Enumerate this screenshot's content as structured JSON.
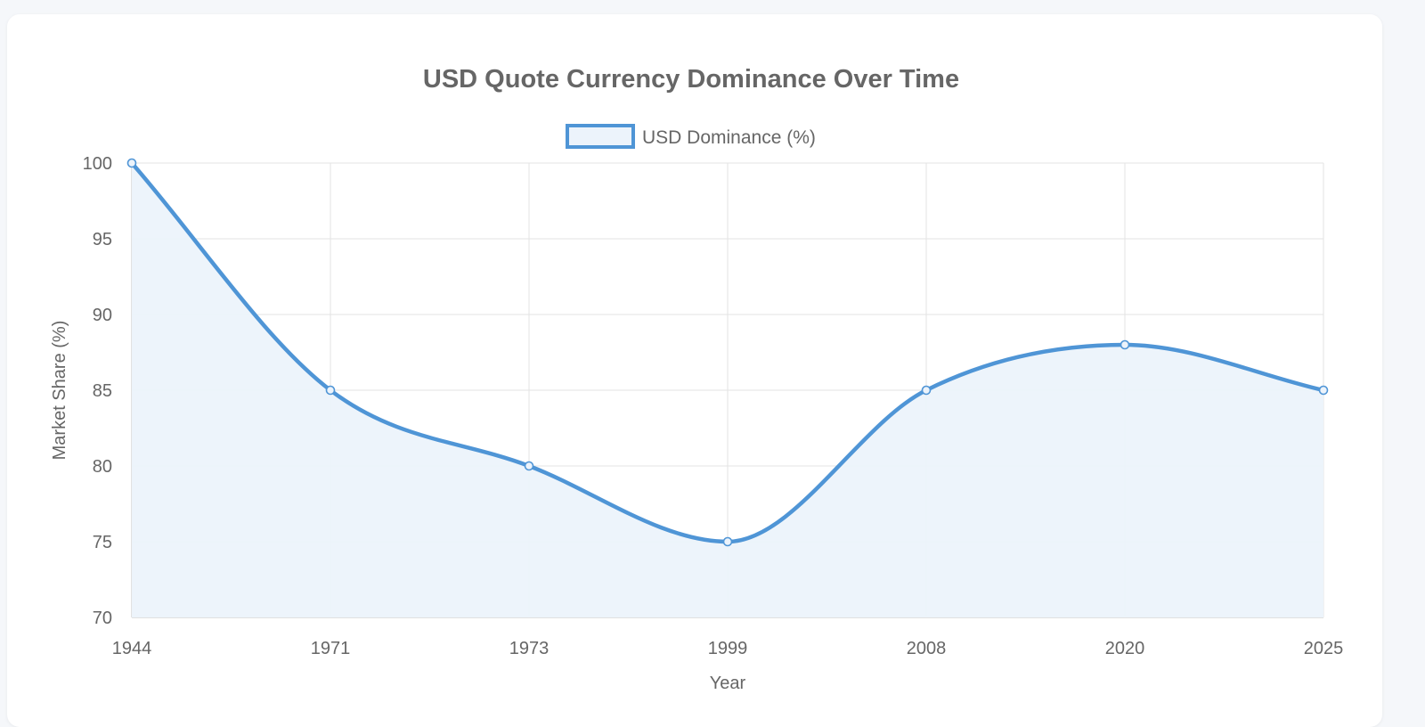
{
  "chart_data": {
    "type": "area",
    "title": "USD Quote Currency Dominance Over Time",
    "xlabel": "Year",
    "ylabel": "Market Share (%)",
    "categories": [
      "1944",
      "1971",
      "1973",
      "1999",
      "2008",
      "2020",
      "2025"
    ],
    "ylim": [
      70,
      100
    ],
    "yticks": [
      70,
      75,
      80,
      85,
      90,
      95,
      100
    ],
    "series": [
      {
        "name": "USD Dominance (%)",
        "values": [
          100,
          85,
          80,
          75,
          85,
          88,
          85
        ],
        "color": "#4f95d6",
        "fill": "#ecf3fb"
      }
    ],
    "legend": "top",
    "grid": true
  }
}
